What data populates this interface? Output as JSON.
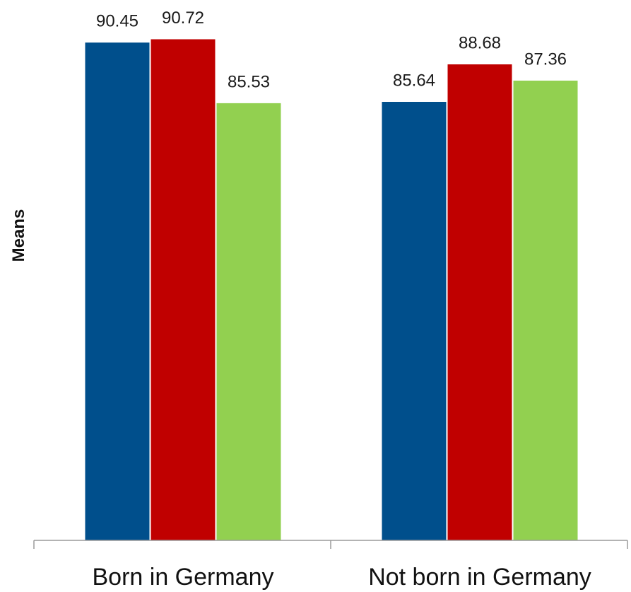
{
  "chart_data": {
    "type": "bar",
    "categories": [
      "Born in Germany",
      "Not born in Germany"
    ],
    "series": [
      {
        "color": "#004F8C",
        "values": [
          90.45,
          85.64
        ]
      },
      {
        "color": "#C00000",
        "values": [
          90.72,
          88.68
        ]
      },
      {
        "color": "#92D050",
        "values": [
          85.53,
          87.36
        ]
      }
    ],
    "data_labels": [
      [
        "90.45",
        "85.64"
      ],
      [
        "90.72",
        "88.68"
      ],
      [
        "85.53",
        "87.36"
      ]
    ],
    "ylabel": "Means",
    "xlabel": "",
    "ylim": [
      50,
      92
    ],
    "grid": false,
    "legend": "none"
  }
}
